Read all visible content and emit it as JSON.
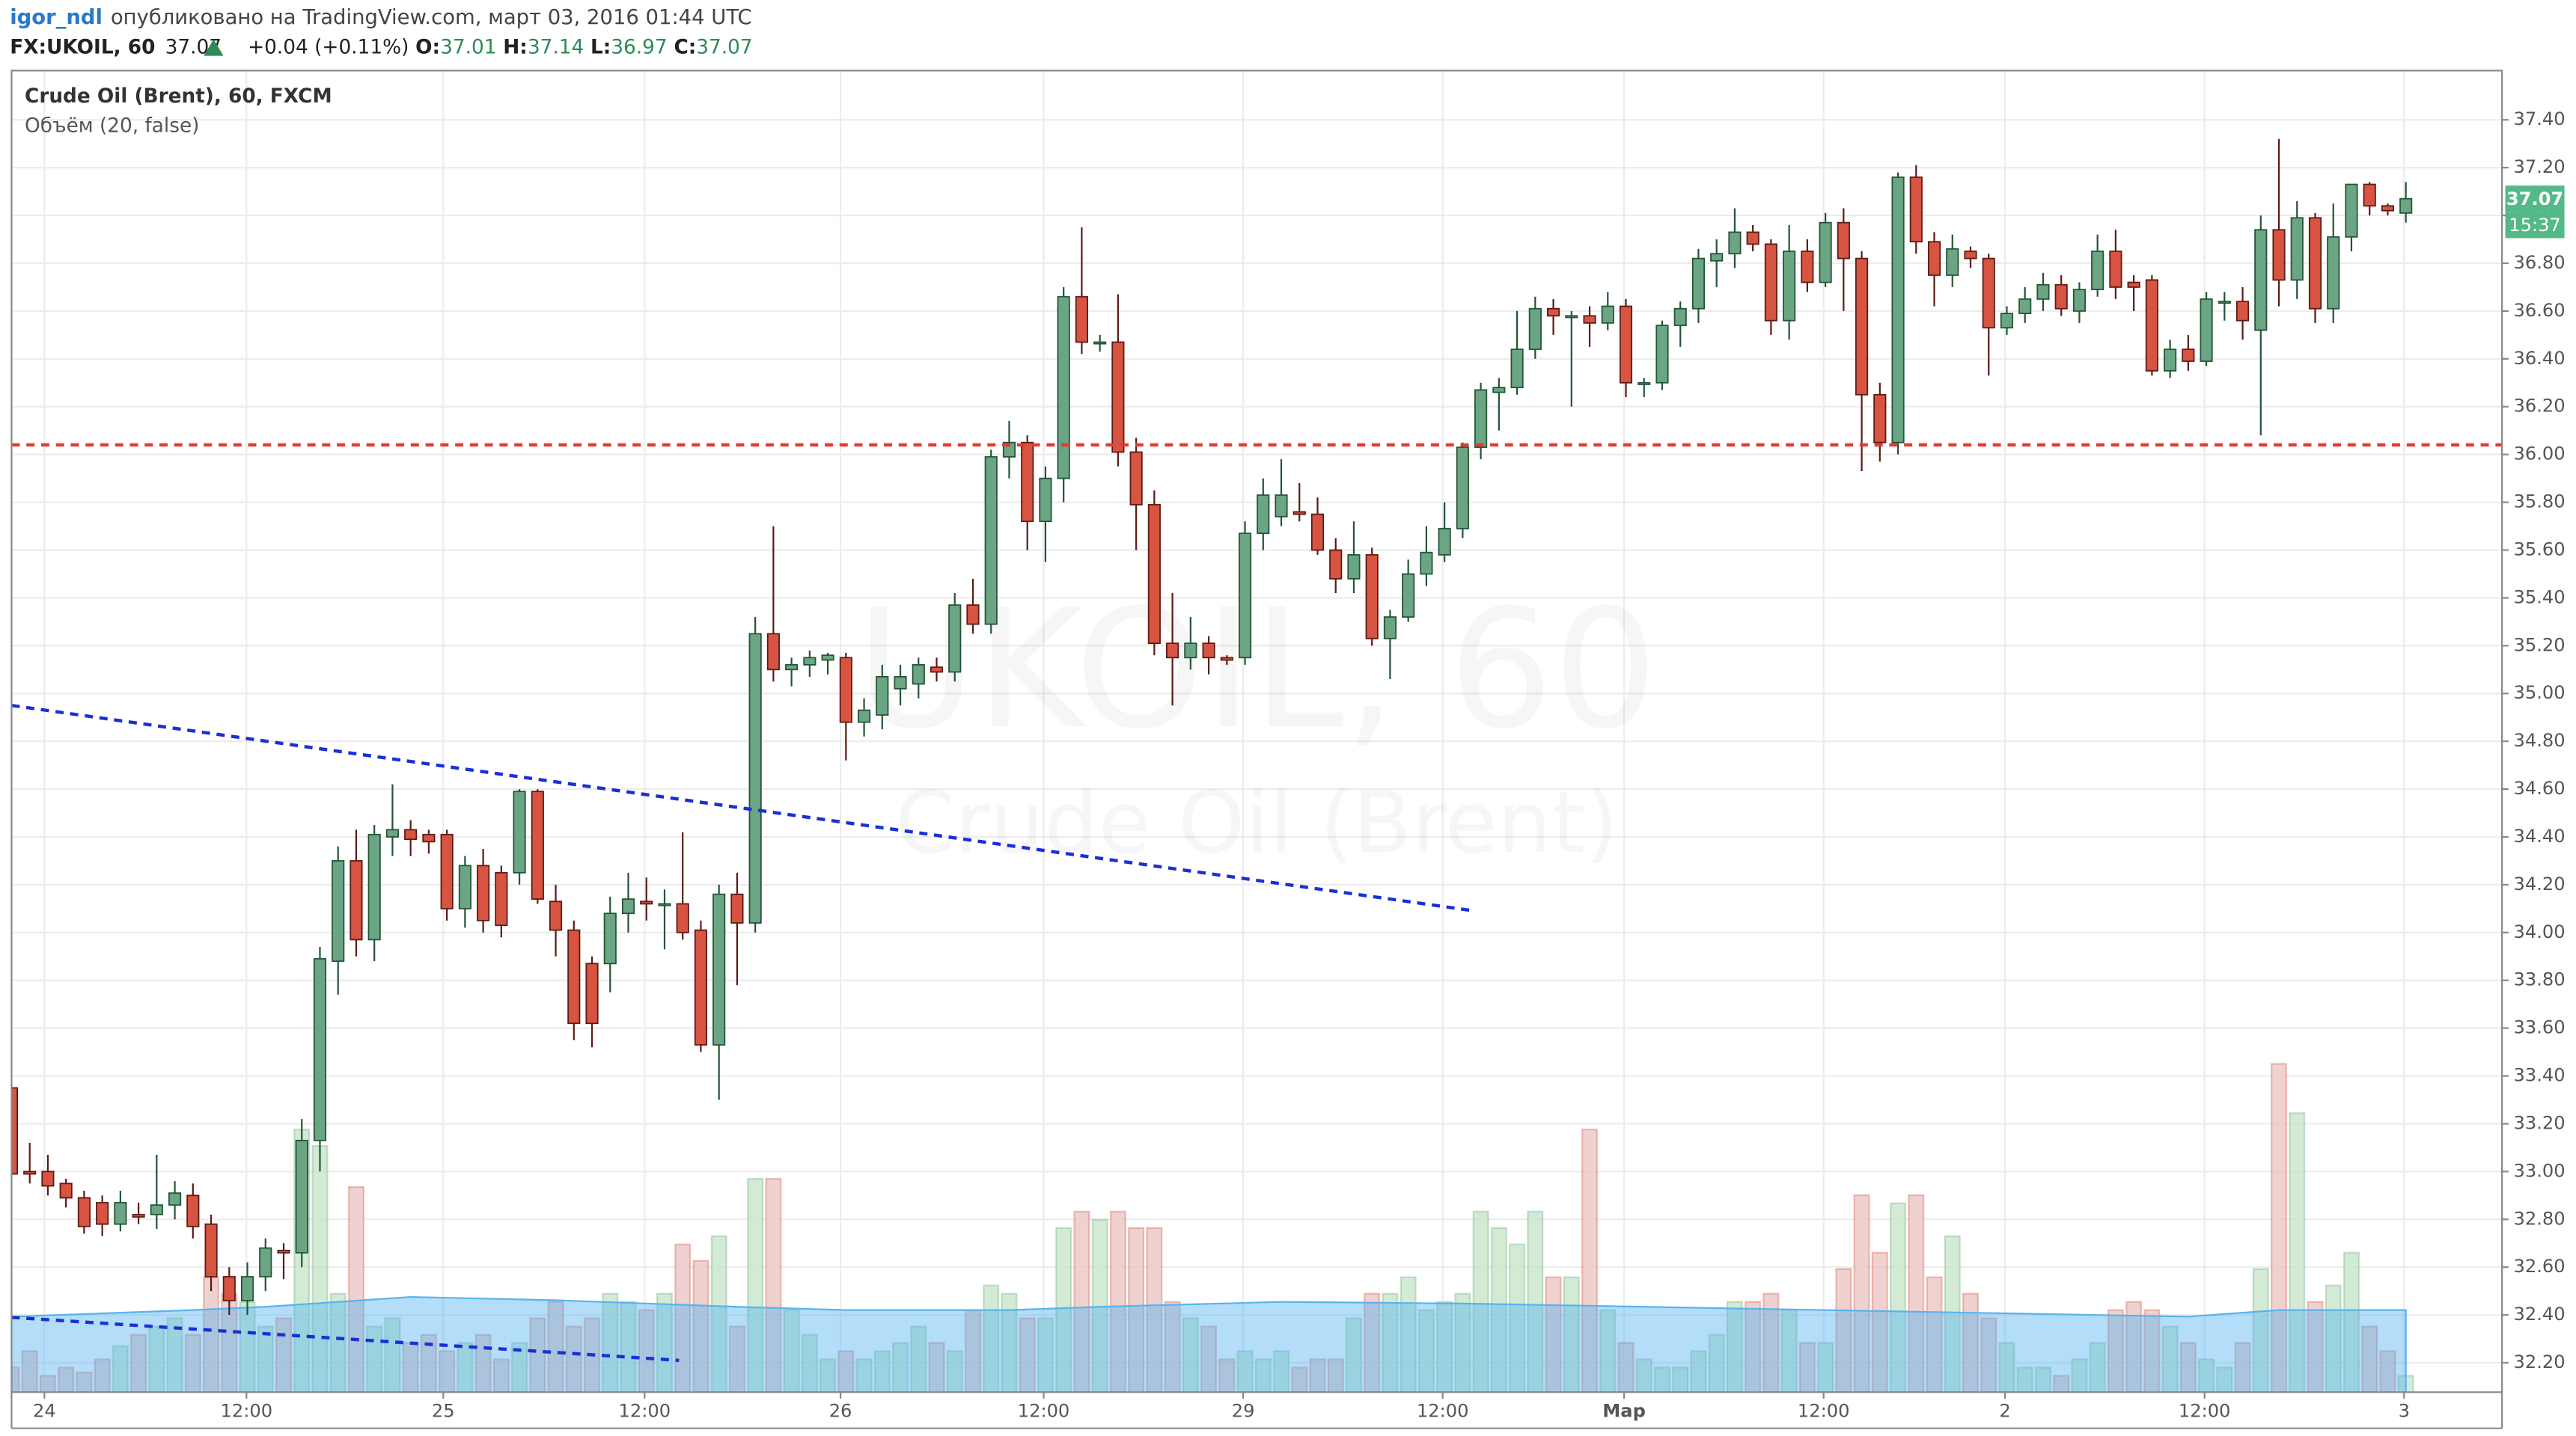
{
  "header": {
    "author": "igor_ndl",
    "published": "опубликовано на TradingView.com, март 03, 2016 01:44 UTC",
    "symbol": "FX:UKOIL, 60",
    "price": "37.07",
    "change": "+0.04 (+0.11%)",
    "open_label": "O:",
    "open": "37.01",
    "high_label": "H:",
    "high": "37.14",
    "low_label": "L:",
    "low": "36.97",
    "close_label": "C:",
    "close": "37.07"
  },
  "chart_data": {
    "type": "candlestick",
    "title": "Crude Oil (Brent), 60, FXCM",
    "subtitle": "Объём (20, false)",
    "watermark": "UKOIL, 60",
    "watermark_subtitle": "Crude Oil (Brent)",
    "countdown": "15:37",
    "up_color": "#6ba583",
    "up_border": "#225437",
    "down_color": "#d75442",
    "down_border": "#5b1a13",
    "volume_up_color": "#c8e6c9",
    "volume_down_color": "#ebc7c3",
    "volume_ma_color": "#56b4f0",
    "xlim": [
      0,
      137.3
    ],
    "ylim": [
      32.077,
      37.606
    ],
    "volume_ylim": [
      0,
      805
    ],
    "grid": true,
    "xticks": [
      {
        "value": 1.81,
        "label": "24"
      },
      {
        "value": 12.95,
        "label": "12:00"
      },
      {
        "value": 23.8,
        "label": "25"
      },
      {
        "value": 34.9,
        "label": "12:00"
      },
      {
        "value": 45.7,
        "label": "26"
      },
      {
        "value": 56.9,
        "label": "12:00"
      },
      {
        "value": 67.9,
        "label": "29"
      },
      {
        "value": 78.9,
        "label": "12:00"
      },
      {
        "value": 88.9,
        "label": "Мар"
      },
      {
        "value": 99.9,
        "label": "12:00"
      },
      {
        "value": 109.9,
        "label": "2"
      },
      {
        "value": 120.9,
        "label": "12:00"
      },
      {
        "value": 131.9,
        "label": "3"
      }
    ],
    "yticks": [
      {
        "value": 32.2,
        "label": "32.20"
      },
      {
        "value": 32.4,
        "label": "32.40"
      },
      {
        "value": 32.6,
        "label": "32.60"
      },
      {
        "value": 32.8,
        "label": "32.80"
      },
      {
        "value": 33,
        "label": "33.00"
      },
      {
        "value": 33.2,
        "label": "33.20"
      },
      {
        "value": 33.4,
        "label": "33.40"
      },
      {
        "value": 33.6,
        "label": "33.60"
      },
      {
        "value": 33.8,
        "label": "33.80"
      },
      {
        "value": 34,
        "label": "34.00"
      },
      {
        "value": 34.2,
        "label": "34.20"
      },
      {
        "value": 34.4,
        "label": "34.40"
      },
      {
        "value": 34.6,
        "label": "34.60"
      },
      {
        "value": 34.8,
        "label": "34.80"
      },
      {
        "value": 35,
        "label": "35.00"
      },
      {
        "value": 35.2,
        "label": "35.20"
      },
      {
        "value": 35.4,
        "label": "35.40"
      },
      {
        "value": 35.6,
        "label": "35.60"
      },
      {
        "value": 35.8,
        "label": "35.80"
      },
      {
        "value": 36,
        "label": "36.00"
      },
      {
        "value": 36.2,
        "label": "36.20"
      },
      {
        "value": 36.4,
        "label": "36.40"
      },
      {
        "value": 36.6,
        "label": "36.60"
      },
      {
        "value": 36.8,
        "label": "36.80"
      },
      {
        "value": 37,
        "label": "37.00"
      },
      {
        "value": 37.2,
        "label": "37.20"
      },
      {
        "value": 37.4,
        "label": "37.40"
      }
    ],
    "open": [
      33.35,
      33.0,
      33.0,
      32.95,
      32.89,
      32.87,
      32.78,
      32.82,
      32.82,
      32.86,
      32.9,
      32.78,
      32.56,
      32.46,
      32.56,
      32.67,
      32.66,
      33.13,
      33.88,
      34.3,
      33.97,
      34.4,
      34.43,
      34.41,
      34.41,
      34.1,
      34.28,
      34.25,
      34.25,
      34.59,
      34.13,
      34.01,
      33.87,
      33.87,
      34.08,
      34.13,
      34.12,
      34.12,
      34.01,
      33.53,
      34.16,
      34.04,
      35.25,
      35.1,
      35.12,
      35.14,
      35.15,
      34.88,
      34.91,
      35.02,
      35.04,
      35.11,
      35.09,
      35.37,
      35.29,
      35.99,
      36.05,
      35.72,
      35.9,
      36.66,
      36.47,
      36.47,
      36.01,
      35.79,
      35.21,
      35.15,
      35.21,
      35.15,
      35.15,
      35.67,
      35.74,
      35.76,
      35.75,
      35.6,
      35.48,
      35.58,
      35.23,
      35.32,
      35.5,
      35.58,
      35.69,
      36.03,
      36.26,
      36.28,
      36.44,
      36.61,
      36.58,
      36.58,
      36.55,
      36.62,
      36.3,
      36.3,
      36.54,
      36.61,
      36.81,
      36.84,
      36.93,
      36.88,
      36.56,
      36.85,
      36.72,
      36.97,
      36.82,
      36.25,
      36.05,
      37.16,
      36.89,
      36.75,
      36.85,
      36.82,
      36.53,
      36.59,
      36.65,
      36.71,
      36.6,
      36.69,
      36.85,
      36.72,
      36.73,
      36.35,
      36.44,
      36.39,
      36.64,
      36.64,
      36.52,
      36.94,
      36.73,
      36.99,
      36.61,
      36.91,
      37.13,
      37.04,
      37.01
    ],
    "high": [
      33.35,
      33.12,
      33.07,
      32.97,
      32.92,
      32.9,
      32.92,
      32.87,
      33.07,
      32.96,
      32.95,
      32.82,
      32.6,
      32.62,
      32.72,
      32.7,
      33.22,
      33.94,
      34.36,
      34.43,
      34.45,
      34.62,
      34.47,
      34.43,
      34.43,
      34.32,
      34.35,
      34.28,
      34.6,
      34.6,
      34.2,
      34.05,
      33.9,
      34.15,
      34.25,
      34.23,
      34.18,
      34.42,
      34.05,
      34.2,
      34.25,
      35.32,
      35.7,
      35.15,
      35.18,
      35.17,
      35.17,
      34.98,
      35.12,
      35.12,
      35.15,
      35.15,
      35.42,
      35.48,
      36.02,
      36.14,
      36.08,
      35.95,
      36.7,
      36.95,
      36.5,
      36.67,
      36.07,
      35.85,
      35.42,
      35.32,
      35.24,
      35.16,
      35.72,
      35.9,
      35.98,
      35.88,
      35.82,
      35.65,
      35.72,
      35.61,
      35.35,
      35.56,
      35.7,
      35.8,
      36.05,
      36.3,
      36.32,
      36.6,
      36.66,
      36.65,
      36.6,
      36.62,
      36.68,
      36.65,
      36.32,
      36.56,
      36.64,
      36.86,
      36.9,
      37.03,
      36.96,
      36.9,
      36.96,
      36.9,
      37.01,
      37.03,
      36.85,
      36.3,
      37.18,
      37.21,
      36.93,
      36.92,
      36.87,
      36.84,
      36.62,
      36.7,
      36.76,
      36.75,
      36.72,
      36.92,
      36.94,
      36.75,
      36.75,
      36.48,
      36.5,
      36.68,
      36.68,
      36.7,
      37.0,
      37.32,
      37.06,
      37.01,
      37.05,
      37.13,
      37.14,
      37.05,
      37.14
    ],
    "low": [
      32.99,
      32.95,
      32.9,
      32.85,
      32.74,
      32.73,
      32.75,
      32.78,
      32.76,
      32.8,
      32.72,
      32.5,
      32.4,
      32.4,
      32.5,
      32.55,
      32.6,
      33.0,
      33.74,
      33.9,
      33.88,
      34.32,
      34.32,
      34.33,
      34.05,
      34.02,
      34.0,
      33.98,
      34.2,
      34.12,
      33.9,
      33.55,
      33.52,
      33.75,
      34.0,
      34.05,
      33.93,
      33.97,
      33.5,
      33.3,
      33.78,
      34.0,
      35.05,
      35.03,
      35.07,
      35.08,
      34.72,
      34.82,
      34.85,
      34.95,
      34.98,
      35.05,
      35.05,
      35.25,
      35.25,
      35.9,
      35.6,
      35.55,
      35.8,
      36.42,
      36.43,
      35.95,
      35.6,
      35.16,
      34.95,
      35.1,
      35.08,
      35.12,
      35.12,
      35.6,
      35.7,
      35.72,
      35.58,
      35.42,
      35.42,
      35.2,
      35.06,
      35.3,
      35.45,
      35.55,
      35.65,
      35.98,
      36.1,
      36.25,
      36.4,
      36.5,
      36.2,
      36.45,
      36.52,
      36.24,
      36.24,
      36.27,
      36.45,
      36.55,
      36.7,
      36.78,
      36.85,
      36.5,
      36.48,
      36.68,
      36.7,
      36.6,
      35.93,
      35.97,
      36.0,
      36.84,
      36.62,
      36.7,
      36.78,
      36.33,
      36.5,
      36.55,
      36.6,
      36.58,
      36.55,
      36.66,
      36.65,
      36.6,
      36.33,
      36.32,
      36.35,
      36.37,
      36.56,
      36.48,
      36.08,
      36.62,
      36.65,
      36.55,
      36.55,
      36.85,
      37.0,
      37.0,
      36.97
    ],
    "close": [
      32.99,
      32.99,
      32.94,
      32.89,
      32.77,
      32.78,
      32.87,
      32.81,
      32.86,
      32.91,
      32.77,
      32.56,
      32.46,
      32.56,
      32.68,
      32.66,
      33.13,
      33.89,
      34.3,
      33.97,
      34.41,
      34.43,
      34.39,
      34.38,
      34.1,
      34.28,
      34.05,
      34.03,
      34.59,
      34.14,
      34.01,
      33.62,
      33.62,
      34.08,
      34.14,
      34.12,
      34.12,
      34.0,
      33.53,
      34.16,
      34.04,
      35.25,
      35.1,
      35.12,
      35.15,
      35.16,
      34.88,
      34.93,
      35.07,
      35.07,
      35.12,
      35.09,
      35.37,
      35.29,
      35.99,
      36.05,
      35.72,
      35.9,
      36.66,
      36.47,
      36.47,
      36.01,
      35.79,
      35.21,
      35.15,
      35.21,
      35.15,
      35.14,
      35.67,
      35.83,
      35.83,
      35.75,
      35.6,
      35.48,
      35.58,
      35.23,
      35.32,
      35.5,
      35.59,
      35.69,
      36.03,
      36.27,
      36.28,
      36.44,
      36.61,
      36.58,
      36.58,
      36.55,
      36.62,
      36.3,
      36.3,
      36.54,
      36.61,
      36.82,
      36.84,
      36.93,
      36.88,
      36.56,
      36.85,
      36.72,
      36.97,
      36.82,
      36.25,
      36.05,
      37.16,
      36.89,
      36.75,
      36.86,
      36.82,
      36.53,
      36.59,
      36.65,
      36.71,
      36.61,
      36.69,
      36.85,
      36.7,
      36.7,
      36.35,
      36.44,
      36.39,
      36.65,
      36.64,
      36.56,
      36.94,
      36.73,
      36.99,
      36.61,
      36.91,
      37.13,
      37.04,
      37.02,
      37.07
    ],
    "volume": [
      15,
      25,
      10,
      15,
      12,
      20,
      28,
      35,
      40,
      45,
      35,
      70,
      60,
      55,
      40,
      45,
      160,
      150,
      60,
      125,
      40,
      45,
      30,
      35,
      25,
      30,
      35,
      20,
      30,
      45,
      55,
      40,
      45,
      60,
      55,
      50,
      60,
      90,
      80,
      95,
      40,
      130,
      130,
      50,
      35,
      20,
      25,
      20,
      25,
      30,
      40,
      30,
      25,
      50,
      65,
      60,
      45,
      45,
      100,
      110,
      105,
      110,
      100,
      100,
      55,
      45,
      40,
      20,
      25,
      20,
      25,
      15,
      20,
      20,
      45,
      60,
      60,
      70,
      50,
      55,
      60,
      110,
      100,
      90,
      110,
      70,
      70,
      160,
      50,
      30,
      20,
      15,
      15,
      25,
      35,
      55,
      55,
      60,
      50,
      30,
      30,
      75,
      120,
      85,
      115,
      120,
      70,
      95,
      60,
      45,
      30,
      15,
      15,
      10,
      20,
      30,
      50,
      55,
      50,
      40,
      30,
      20,
      15,
      30,
      75,
      200,
      170,
      55,
      65,
      85,
      40,
      25,
      10
    ],
    "volume_ma": {
      "x": [
        0,
        10,
        14,
        18,
        22,
        30,
        40,
        46,
        55,
        60,
        70,
        80,
        90,
        100,
        110,
        120,
        125,
        132
      ],
      "values": [
        46,
        50,
        52,
        55,
        58,
        56,
        52,
        50,
        50,
        52,
        55,
        54,
        52,
        50,
        48,
        46,
        50,
        50
      ]
    },
    "lines": [
      {
        "x": [
          0,
          137.3
        ],
        "y": [
          36.04,
          36.04
        ],
        "color": "#e53935"
      },
      {
        "x": [
          0,
          80.7
        ],
        "y": [
          34.95,
          34.09
        ],
        "color": "#1a2fd6"
      },
      {
        "x": [
          0,
          36.8
        ],
        "y": [
          32.39,
          32.21
        ],
        "color": "#1a2fd6"
      }
    ]
  }
}
